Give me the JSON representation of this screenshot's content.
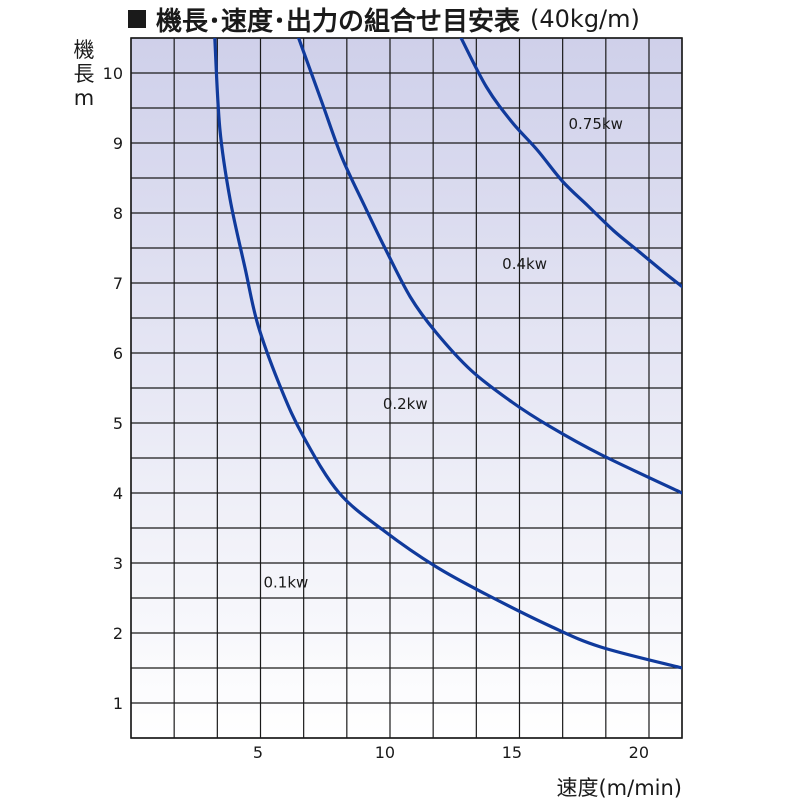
{
  "title": {
    "text": "機長･速度･出力の組合せ目安表",
    "unit": "(40kg/m)"
  },
  "chart_data": {
    "type": "line",
    "title": "機長･速度･出力の組合せ目安表(40kg/m)",
    "ylabel_lines": [
      "機",
      "長",
      "m"
    ],
    "xlabel": "速度(m/min)",
    "xlim": [
      0,
      21.7
    ],
    "ylim": [
      0.5,
      10.5
    ],
    "x_ticks": [
      5,
      10,
      15,
      20
    ],
    "y_ticks": [
      1,
      2,
      3,
      4,
      5,
      6,
      7,
      8,
      9,
      10
    ],
    "grid": true,
    "colors": {
      "curve": "#103a9c",
      "grid": "#1a1a1a",
      "background_top": "#cfd0ea",
      "background_bottom": "#ffffff"
    },
    "series": [
      {
        "name": "0.1kw",
        "points": [
          [
            3.3,
            10.5
          ],
          [
            3.5,
            9.2
          ],
          [
            3.9,
            8.2
          ],
          [
            4.5,
            7.2
          ],
          [
            5.0,
            6.4
          ],
          [
            5.9,
            5.5
          ],
          [
            6.8,
            4.8
          ],
          [
            8.2,
            4.0
          ],
          [
            10.0,
            3.45
          ],
          [
            12.0,
            2.95
          ],
          [
            14.0,
            2.55
          ],
          [
            16.5,
            2.1
          ],
          [
            18.5,
            1.8
          ],
          [
            21.7,
            1.5
          ]
        ]
      },
      {
        "name": "0.2kw",
        "points": [
          [
            6.6,
            10.5
          ],
          [
            7.5,
            9.6
          ],
          [
            8.3,
            8.8
          ],
          [
            9.2,
            8.1
          ],
          [
            10.0,
            7.5
          ],
          [
            11.0,
            6.8
          ],
          [
            12.0,
            6.3
          ],
          [
            13.4,
            5.75
          ],
          [
            15.0,
            5.3
          ],
          [
            16.5,
            4.95
          ],
          [
            18.5,
            4.55
          ],
          [
            21.7,
            4.0
          ]
        ]
      },
      {
        "name": "0.4kw",
        "points": [
          [
            13.0,
            10.5
          ],
          [
            14.0,
            9.8
          ],
          [
            15.0,
            9.3
          ],
          [
            16.0,
            8.9
          ],
          [
            17.0,
            8.45
          ],
          [
            18.0,
            8.1
          ],
          [
            19.0,
            7.75
          ],
          [
            20.0,
            7.45
          ],
          [
            21.0,
            7.15
          ],
          [
            21.7,
            6.95
          ]
        ]
      },
      {
        "name": "0.75kw"
      }
    ],
    "annotations": [
      {
        "text": "0.1kw",
        "x": 6.1,
        "y": 2.65
      },
      {
        "text": "0.2kw",
        "x": 10.8,
        "y": 5.2
      },
      {
        "text": "0.4kw",
        "x": 15.5,
        "y": 7.2
      },
      {
        "text": "0.75kw",
        "x": 18.3,
        "y": 9.2
      }
    ]
  }
}
